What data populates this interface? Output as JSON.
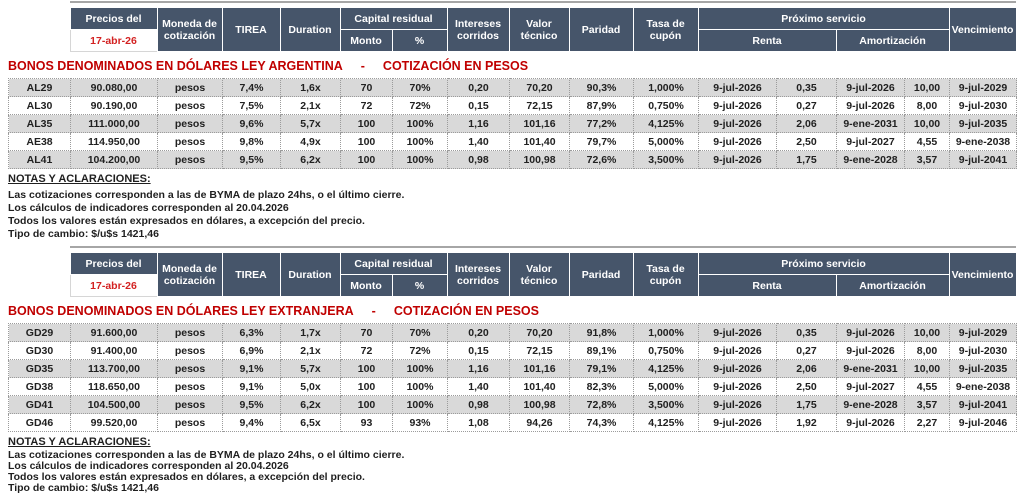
{
  "colors": {
    "header_bg": "#46556A",
    "title_red": "#C00000",
    "date_red": "#D32222",
    "row_stripe": "#D9D9D9"
  },
  "header": {
    "precios_del": "Precios del",
    "fecha": "17-abr-26",
    "moneda": "Moneda de cotización",
    "tirea": "TIREA",
    "duration": "Duration",
    "capital_residual": "Capital residual",
    "monto": "Monto",
    "pct": "%",
    "intereses": "Intereses corridos",
    "valor_tecnico": "Valor técnico",
    "paridad": "Paridad",
    "tasa_cupon": "Tasa de cupón",
    "proximo_servicio": "Próximo servicio",
    "renta": "Renta",
    "amortizacion": "Amortización",
    "vencimiento": "Vencimiento"
  },
  "notes": {
    "heading": "NOTAS Y ACLARACIONES:",
    "lines": [
      "Las cotizaciones corresponden a las de BYMA de plazo 24hs, o el último cierre.",
      "Los cálculos de indicadores corresponden al 20.04.2026",
      "Todos los valores están expresados en dólares, a excepción del precio.",
      "Tipo de cambio: $/u$s 1421,46"
    ]
  },
  "tables": [
    {
      "title_left": "BONOS DENOMINADOS EN DÓLARES LEY ARGENTINA",
      "title_dash": "-",
      "title_right": "COTIZACIÓN EN PESOS",
      "rows": [
        [
          "AL29",
          "90.080,00",
          "pesos",
          "7,4%",
          "1,6x",
          "70",
          "70%",
          "0,20",
          "70,20",
          "90,3%",
          "1,000%",
          "9-jul-2026",
          "0,35",
          "9-jul-2026",
          "10,00",
          "9-jul-2029"
        ],
        [
          "AL30",
          "90.190,00",
          "pesos",
          "7,5%",
          "2,1x",
          "72",
          "72%",
          "0,15",
          "72,15",
          "87,9%",
          "0,750%",
          "9-jul-2026",
          "0,27",
          "9-jul-2026",
          "8,00",
          "9-jul-2030"
        ],
        [
          "AL35",
          "111.000,00",
          "pesos",
          "9,6%",
          "5,7x",
          "100",
          "100%",
          "1,16",
          "101,16",
          "77,2%",
          "4,125%",
          "9-jul-2026",
          "2,06",
          "9-ene-2031",
          "10,00",
          "9-jul-2035"
        ],
        [
          "AE38",
          "114.950,00",
          "pesos",
          "9,8%",
          "4,9x",
          "100",
          "100%",
          "1,40",
          "101,40",
          "79,7%",
          "5,000%",
          "9-jul-2026",
          "2,50",
          "9-jul-2027",
          "4,55",
          "9-ene-2038"
        ],
        [
          "AL41",
          "104.200,00",
          "pesos",
          "9,5%",
          "6,2x",
          "100",
          "100%",
          "0,98",
          "100,98",
          "72,6%",
          "3,500%",
          "9-jul-2026",
          "1,75",
          "9-ene-2028",
          "3,57",
          "9-jul-2041"
        ]
      ]
    },
    {
      "title_left": "BONOS DENOMINADOS EN DÓLARES LEY EXTRANJERA",
      "title_dash": "-",
      "title_right": "COTIZACIÓN EN PESOS",
      "rows": [
        [
          "GD29",
          "91.600,00",
          "pesos",
          "6,3%",
          "1,7x",
          "70",
          "70%",
          "0,20",
          "70,20",
          "91,8%",
          "1,000%",
          "9-jul-2026",
          "0,35",
          "9-jul-2026",
          "10,00",
          "9-jul-2029"
        ],
        [
          "GD30",
          "91.400,00",
          "pesos",
          "6,9%",
          "2,1x",
          "72",
          "72%",
          "0,15",
          "72,15",
          "89,1%",
          "0,750%",
          "9-jul-2026",
          "0,27",
          "9-jul-2026",
          "8,00",
          "9-jul-2030"
        ],
        [
          "GD35",
          "113.700,00",
          "pesos",
          "9,1%",
          "5,7x",
          "100",
          "100%",
          "1,16",
          "101,16",
          "79,1%",
          "4,125%",
          "9-jul-2026",
          "2,06",
          "9-ene-2031",
          "10,00",
          "9-jul-2035"
        ],
        [
          "GD38",
          "118.650,00",
          "pesos",
          "9,1%",
          "5,0x",
          "100",
          "100%",
          "1,40",
          "101,40",
          "82,3%",
          "5,000%",
          "9-jul-2026",
          "2,50",
          "9-jul-2027",
          "4,55",
          "9-ene-2038"
        ],
        [
          "GD41",
          "104.500,00",
          "pesos",
          "9,5%",
          "6,2x",
          "100",
          "100%",
          "0,98",
          "100,98",
          "72,8%",
          "3,500%",
          "9-jul-2026",
          "1,75",
          "9-ene-2028",
          "3,57",
          "9-jul-2041"
        ],
        [
          "GD46",
          "99.520,00",
          "pesos",
          "9,4%",
          "6,5x",
          "93",
          "93%",
          "1,08",
          "94,26",
          "74,3%",
          "4,125%",
          "9-jul-2026",
          "1,92",
          "9-jul-2026",
          "2,27",
          "9-jul-2046"
        ]
      ]
    }
  ]
}
